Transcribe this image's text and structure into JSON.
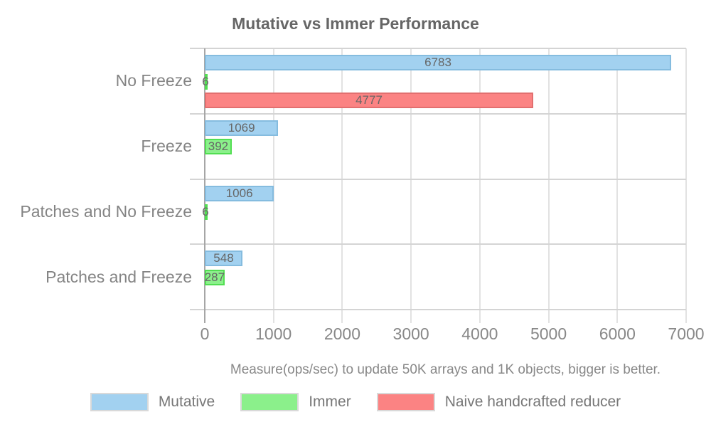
{
  "chart_data": {
    "type": "bar",
    "orientation": "horizontal",
    "title": "Mutative vs Immer Performance",
    "subtitle": "Measure(ops/sec) to update 50K arrays and 1K objects, bigger is better.",
    "categories": [
      "No Freeze",
      "Freeze",
      "Patches and No Freeze",
      "Patches and Freeze"
    ],
    "series": [
      {
        "name": "Mutative",
        "values": [
          6783,
          1069,
          1006,
          548
        ],
        "fill": "#A2D1F0",
        "border": "#85BCDF"
      },
      {
        "name": "Immer",
        "values": [
          6,
          392,
          6,
          287
        ],
        "fill": "#8BF08B",
        "border": "#52DE52"
      },
      {
        "name": "Naive handcrafted reducer",
        "values": [
          4777,
          null,
          null,
          null
        ],
        "fill": "#FB8383",
        "border": "#E26F6F"
      }
    ],
    "xlim": [
      0,
      7000
    ],
    "x_ticks": [
      0,
      1000,
      2000,
      3000,
      4000,
      5000,
      6000,
      7000
    ],
    "grid": true,
    "legend_position": "bottom",
    "value_labels": true
  },
  "colors": {
    "grid_vertical": "#E2E2E2",
    "grid_horizontal": "#D4D4D4",
    "axis": "#A6A6A6",
    "title_text": "#666666",
    "label_text": "#848484",
    "tick_text": "#888888",
    "value_text": "#666666",
    "legend_text": "#777777",
    "background": "#FFFFFF"
  }
}
